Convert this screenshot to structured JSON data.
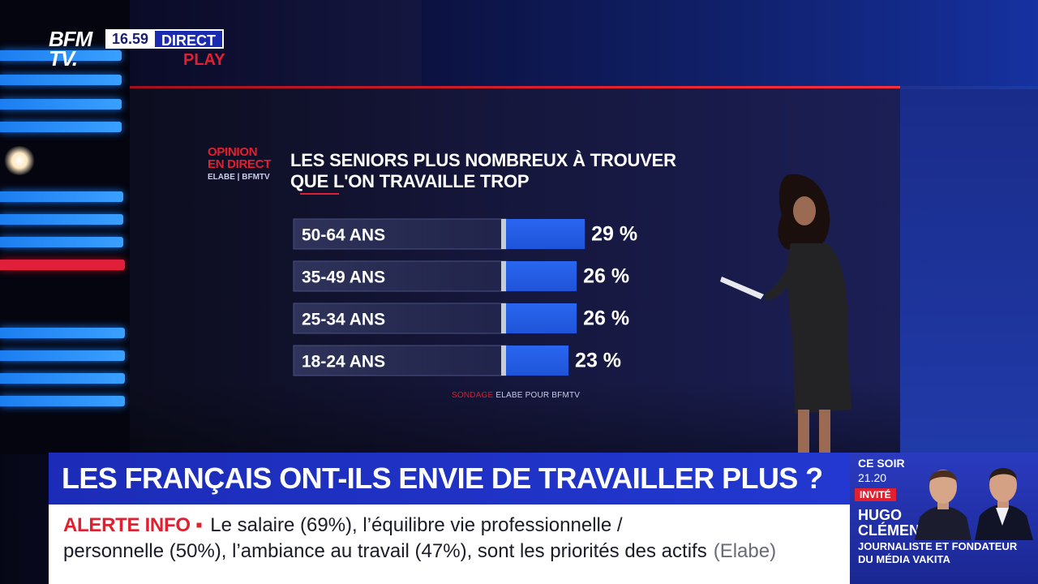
{
  "channel": {
    "logo_line1": "BFM",
    "logo_line2": "TV.",
    "time": "16.59",
    "live_label": "DIRECT",
    "play_label": "PLAY"
  },
  "graphic": {
    "brand_line1": "OPINION",
    "brand_line2": "EN DIRECT",
    "brand_line3": "ELABE | BFMTV",
    "title_line1": "LES SENIORS PLUS NOMBREUX À TROUVER",
    "title_line2": "QUE L'ON TRAVAILLE TROP",
    "source_prefix": "SONDAGE",
    "source_rest": "ELABE POUR BFMTV"
  },
  "chart_data": {
    "type": "bar",
    "orientation": "horizontal",
    "title": "LES SENIORS PLUS NOMBREUX À TROUVER QUE L'ON TRAVAILLE TROP",
    "categories": [
      "50-64 ANS",
      "35-49 ANS",
      "25-34 ANS",
      "18-24 ANS"
    ],
    "values": [
      29,
      26,
      26,
      23
    ],
    "value_labels": [
      "29 %",
      "26 %",
      "26 %",
      "23 %"
    ],
    "unit": "%",
    "bar_color": "#1f54d8",
    "grid": false,
    "legend": "none"
  },
  "lower_third": {
    "headline": "LES FRANÇAIS ONT-ILS ENVIE DE TRAVAILLER PLUS ?",
    "alert_label": "ALERTE INFO ▪",
    "ticker_line1": "Le salaire (69%), l’équilibre vie professionnelle /",
    "ticker_line2": "personnelle (50%), l’ambiance au travail (47%), sont les priorités des actifs",
    "ticker_source": "(Elabe)"
  },
  "promo": {
    "when_line1": "CE SOIR",
    "when_line2": "21.20",
    "invite_label": "INVITÉ",
    "name_line1": "HUGO",
    "name_line2": "CLÉMENT",
    "role_line1": "JOURNALISTE ET FONDATEUR",
    "role_line2": "DU MÉDIA VAKITA"
  },
  "colors": {
    "brand_red": "#e02030",
    "brand_blue": "#1c2cb8",
    "bar_blue": "#1f54d8"
  }
}
